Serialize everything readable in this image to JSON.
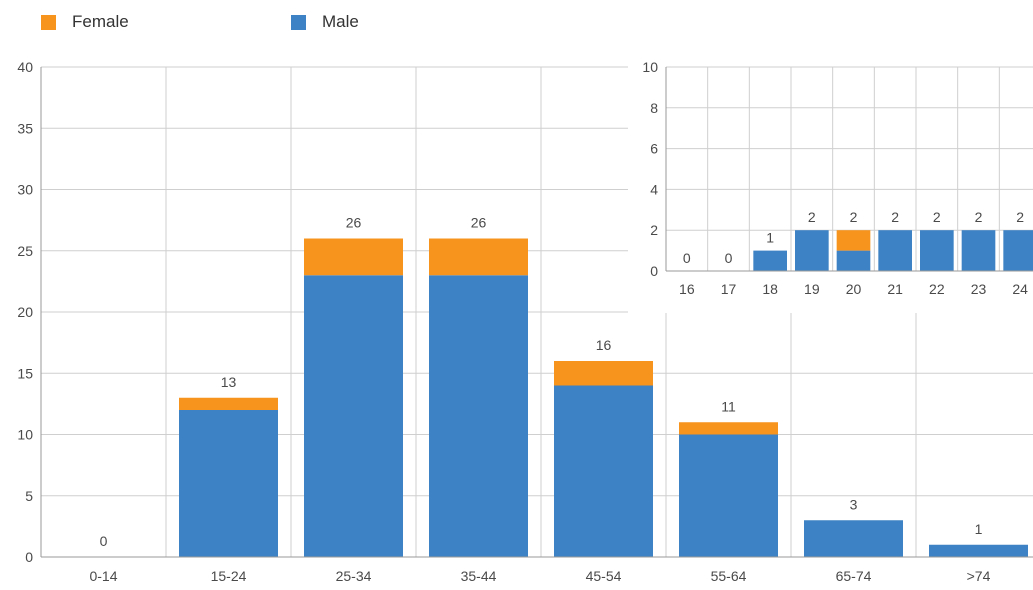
{
  "legend": [
    {
      "label": "Female",
      "color": "#f7941d"
    },
    {
      "label": "Male",
      "color": "#3d82c4"
    }
  ],
  "chart_data": [
    {
      "type": "bar",
      "stacked": true,
      "categories": [
        "0-14",
        "15-24",
        "25-34",
        "35-44",
        "45-54",
        "55-64",
        "65-74",
        ">74"
      ],
      "series": [
        {
          "name": "Male",
          "values": [
            0,
            12,
            23,
            23,
            14,
            10,
            3,
            1
          ],
          "color": "#3d82c4"
        },
        {
          "name": "Female",
          "values": [
            0,
            1,
            3,
            3,
            2,
            1,
            0,
            0
          ],
          "color": "#f7941d"
        }
      ],
      "totals": [
        0,
        13,
        26,
        26,
        16,
        11,
        3,
        1
      ],
      "ylim": [
        0,
        40
      ],
      "yticks": [
        0,
        5,
        10,
        15,
        20,
        25,
        30,
        35,
        40
      ],
      "xlabel": "",
      "ylabel": "",
      "title": "",
      "grid": true,
      "legend_position": "top-left"
    },
    {
      "type": "bar",
      "stacked": true,
      "categories": [
        "16",
        "17",
        "18",
        "19",
        "20",
        "21",
        "22",
        "23",
        "24"
      ],
      "series": [
        {
          "name": "Male",
          "values": [
            0,
            0,
            1,
            2,
            1,
            2,
            2,
            2,
            2
          ],
          "color": "#3d82c4"
        },
        {
          "name": "Female",
          "values": [
            0,
            0,
            0,
            0,
            1,
            0,
            0,
            0,
            0
          ],
          "color": "#f7941d"
        }
      ],
      "totals": [
        0,
        0,
        1,
        2,
        2,
        2,
        2,
        2,
        2
      ],
      "ylim": [
        0,
        10
      ],
      "yticks": [
        0,
        2,
        4,
        6,
        8,
        10
      ],
      "xlabel": "",
      "ylabel": "",
      "title": "",
      "grid": true,
      "inset": true,
      "position": "top-right"
    }
  ]
}
